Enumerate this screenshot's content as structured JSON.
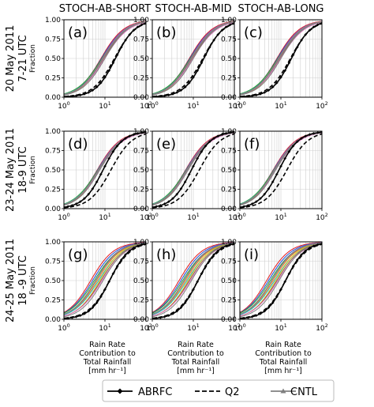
{
  "columns": [
    "STOCH-AB-SHORT",
    "STOCH-AB-MID",
    "STOCH-AB-LONG"
  ],
  "rows": [
    {
      "line1": "20 May 2011",
      "line2": "7-21 UTC"
    },
    {
      "line1": "23-24 May 2011",
      "line2": "18-9 UTC"
    },
    {
      "line1": "24-25 May 2011",
      "line2": "18 -9 UTC"
    }
  ],
  "ylabel": "Fraction",
  "xlabel": [
    "Rain Rate",
    "Contribution to",
    "Total Rainfall",
    "[mm hr⁻¹]"
  ],
  "yticks": [
    "0.00",
    "0.25",
    "0.50",
    "0.75",
    "1.00"
  ],
  "xtick_base": "10",
  "xtick_exps": [
    "0",
    "1",
    "2"
  ],
  "legend": [
    {
      "label": "ABRFC",
      "style": "solid-diamond",
      "color": "#000000"
    },
    {
      "label": "Q2",
      "style": "dashed",
      "color": "#000000"
    },
    {
      "label": "CNTL",
      "style": "solid-triangle",
      "color": "#808080"
    }
  ],
  "member_colors": [
    "#e41a1c",
    "#1f4fd8",
    "#2ca02c",
    "#9467bd",
    "#ff7f0e",
    "#17becf",
    "#d4c41a",
    "#8c564b",
    "#e377c2",
    "#7f7f7f"
  ],
  "chart_data": [
    {
      "panel": "(a)",
      "row": 0,
      "col": 0,
      "type": "line",
      "xscale": "log",
      "xlim": [
        1,
        100
      ],
      "ylim": [
        0,
        1
      ],
      "abrfc_median": 18,
      "q2_median": 17,
      "cntl_median": 9,
      "ens_median_range": [
        8,
        10
      ]
    },
    {
      "panel": "(b)",
      "row": 0,
      "col": 1,
      "type": "line",
      "xscale": "log",
      "xlim": [
        1,
        100
      ],
      "ylim": [
        0,
        1
      ],
      "abrfc_median": 18,
      "q2_median": 17,
      "cntl_median": 9,
      "ens_median_range": [
        8,
        10
      ]
    },
    {
      "panel": "(c)",
      "row": 0,
      "col": 2,
      "type": "line",
      "xscale": "log",
      "xlim": [
        1,
        100
      ],
      "ylim": [
        0,
        1
      ],
      "abrfc_median": 18,
      "q2_median": 17,
      "cntl_median": 9,
      "ens_median_range": [
        8,
        10
      ]
    },
    {
      "panel": "(d)",
      "row": 1,
      "col": 0,
      "type": "line",
      "xscale": "log",
      "xlim": [
        1,
        100
      ],
      "ylim": [
        0,
        1
      ],
      "abrfc_median": 9,
      "q2_median": 14,
      "cntl_median": 7,
      "ens_median_range": [
        6.5,
        7.5
      ]
    },
    {
      "panel": "(e)",
      "row": 1,
      "col": 1,
      "type": "line",
      "xscale": "log",
      "xlim": [
        1,
        100
      ],
      "ylim": [
        0,
        1
      ],
      "abrfc_median": 9,
      "q2_median": 14,
      "cntl_median": 7,
      "ens_median_range": [
        6.5,
        7.5
      ]
    },
    {
      "panel": "(f)",
      "row": 1,
      "col": 2,
      "type": "line",
      "xscale": "log",
      "xlim": [
        1,
        100
      ],
      "ylim": [
        0,
        1
      ],
      "abrfc_median": 9,
      "q2_median": 14,
      "cntl_median": 7,
      "ens_median_range": [
        6.5,
        7.5
      ]
    },
    {
      "panel": "(g)",
      "row": 2,
      "col": 0,
      "type": "line",
      "xscale": "log",
      "xlim": [
        1,
        100
      ],
      "ylim": [
        0,
        1
      ],
      "abrfc_median": 13,
      "q2_median": 13,
      "cntl_median": 6,
      "ens_median_range": [
        4.5,
        9
      ]
    },
    {
      "panel": "(h)",
      "row": 2,
      "col": 1,
      "type": "line",
      "xscale": "log",
      "xlim": [
        1,
        100
      ],
      "ylim": [
        0,
        1
      ],
      "abrfc_median": 13,
      "q2_median": 13,
      "cntl_median": 6,
      "ens_median_range": [
        4.5,
        9
      ]
    },
    {
      "panel": "(i)",
      "row": 2,
      "col": 2,
      "type": "line",
      "xscale": "log",
      "xlim": [
        1,
        100
      ],
      "ylim": [
        0,
        1
      ],
      "abrfc_median": 13,
      "q2_median": 13,
      "cntl_median": 6,
      "ens_median_range": [
        4.5,
        9
      ]
    }
  ]
}
